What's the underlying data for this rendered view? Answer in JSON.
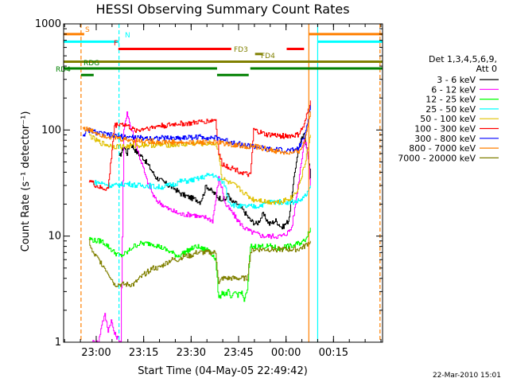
{
  "chart_data": {
    "type": "line",
    "title": "HESSI Observing Summary Count Rates",
    "xlabel": "Start Time (04-May-05 22:49:42)",
    "ylabel": "Count Rate (s⁻¹ detector⁻¹)",
    "yscale": "log",
    "ylim": [
      1,
      1000
    ],
    "xlim": [
      "22:49:42",
      "00:30:30"
    ],
    "x_unit": "minutes after 22:49:42",
    "x_range_minutes": [
      0,
      100.8
    ],
    "yticks": [
      {
        "value": 1,
        "label": "1"
      },
      {
        "value": 10,
        "label": "10"
      },
      {
        "value": 100,
        "label": "100"
      },
      {
        "value": 1000,
        "label": "1000"
      }
    ],
    "xticks": [
      {
        "minute": 10.3,
        "label": "23:00"
      },
      {
        "minute": 25.3,
        "label": "23:15"
      },
      {
        "minute": 40.3,
        "label": "23:30"
      },
      {
        "minute": 55.3,
        "label": "23:45"
      },
      {
        "minute": 70.3,
        "label": "00:00"
      },
      {
        "minute": 85.3,
        "label": "00:15"
      }
    ],
    "legend": {
      "placement": "right",
      "header": [
        "Det 1,3,4,5,6,9,",
        "Att 0"
      ],
      "entries": [
        {
          "label": "3 - 6 keV",
          "color": "#000000"
        },
        {
          "label": "6 - 12 keV",
          "color": "#ff00ff"
        },
        {
          "label": "12 - 25 keV",
          "color": "#00ff00"
        },
        {
          "label": "25 - 50 keV",
          "color": "#00ffff"
        },
        {
          "label": "50 - 100 keV",
          "color": "#e0c000"
        },
        {
          "label": "100 - 300 keV",
          "color": "#ff0000"
        },
        {
          "label": "300 - 800 keV",
          "color": "#0000ff"
        },
        {
          "label": "800 - 7000 keV",
          "color": "#ff8000"
        },
        {
          "label": "7000 - 20000 keV",
          "color": "#808000"
        }
      ]
    },
    "flag_bars": [
      {
        "label": "S",
        "color": "#ff8000",
        "y": 800,
        "segments": [
          [
            0,
            6.5
          ],
          [
            77.5,
            100.8
          ]
        ]
      },
      {
        "label": "N",
        "color": "#00ffff",
        "y": 680,
        "segments": [
          [
            0,
            17.5
          ],
          [
            80.3,
            100.8
          ]
        ]
      },
      {
        "label": "F",
        "color": "#ff0000",
        "y": 580,
        "segments": [
          [
            17.3,
            53.0
          ],
          [
            70.5,
            76.0
          ]
        ]
      },
      {
        "label": "FD3",
        "color": "#808000",
        "y": 520,
        "segments": [
          [
            60.5,
            63.0
          ]
        ]
      },
      {
        "label": "FD4",
        "color": "#808000",
        "y": 440,
        "segments": [
          [
            0,
            100.8
          ]
        ]
      },
      {
        "label": "RDG",
        "color": "#008000",
        "y": 380,
        "segments": [
          [
            0,
            48.5
          ],
          [
            59.0,
            100.8
          ]
        ]
      },
      {
        "label": "RD4",
        "color": "#008000",
        "y": 330,
        "segments": [
          [
            5.5,
            9.5
          ],
          [
            48.5,
            58.5
          ]
        ]
      }
    ],
    "vertical_lines": [
      {
        "minute": 5.5,
        "color": "#ff8000",
        "style": "dashed"
      },
      {
        "minute": 17.5,
        "color": "#00ffff",
        "style": "dashed"
      },
      {
        "minute": 77.5,
        "color": "#ff8000",
        "style": "solid"
      },
      {
        "minute": 80.3,
        "color": "#00ffff",
        "style": "solid"
      },
      {
        "minute": 100.0,
        "color": "#ff8000",
        "style": "dashed"
      }
    ],
    "series": [
      {
        "name": "3 - 6 keV",
        "color": "#000000",
        "x": [
          17.5,
          19,
          20,
          21,
          22,
          23,
          25,
          27,
          29,
          31,
          33,
          35,
          37,
          40,
          42,
          43,
          44,
          45,
          47,
          49,
          51,
          52,
          53,
          55,
          57,
          59,
          61,
          63,
          65,
          67,
          69,
          71,
          72,
          73,
          74,
          75,
          76,
          77,
          78
        ],
        "y": [
          55,
          70,
          60,
          75,
          68,
          62,
          55,
          45,
          36,
          33,
          30,
          28,
          25,
          23,
          22,
          21,
          24,
          30,
          26,
          23,
          22,
          25,
          21,
          20,
          17,
          14,
          13,
          16,
          13,
          14,
          12,
          14,
          22,
          40,
          65,
          80,
          90,
          65,
          35
        ]
      },
      {
        "name": "6 - 12 keV",
        "color": "#ff00ff",
        "x": [
          9,
          10,
          11,
          12,
          13,
          14,
          15,
          16,
          17,
          18,
          19,
          20,
          21,
          22,
          23,
          24,
          25,
          26,
          27,
          28,
          29,
          31,
          33,
          35,
          37,
          39,
          41,
          43,
          45,
          47,
          48,
          49,
          50,
          51,
          53,
          55,
          57,
          59,
          61,
          63,
          65,
          67,
          69,
          71,
          72,
          73,
          74,
          75,
          76,
          77,
          78
        ],
        "y": [
          1,
          1,
          1,
          1.5,
          1.8,
          1.3,
          1.6,
          1.2,
          1.1,
          1,
          100,
          150,
          110,
          90,
          70,
          55,
          45,
          35,
          30,
          25,
          22,
          20,
          18,
          17,
          16,
          16,
          16,
          15,
          15,
          14,
          22,
          35,
          28,
          20,
          17,
          14,
          12,
          11,
          10.5,
          10,
          10,
          10,
          10,
          11,
          12,
          18,
          30,
          50,
          80,
          65,
          30
        ]
      },
      {
        "name": "12 - 25 keV",
        "color": "#00ff00",
        "x": [
          8,
          10,
          12,
          14,
          16,
          18,
          20,
          22,
          24,
          26,
          28,
          30,
          32,
          34,
          36,
          38,
          40,
          42,
          44,
          46,
          48,
          49,
          50,
          51,
          52,
          53,
          54,
          55,
          56,
          57,
          58,
          59,
          60,
          62,
          64,
          66,
          68,
          70,
          72,
          74,
          76,
          78
        ],
        "y": [
          9.5,
          9,
          9,
          8,
          7,
          6.5,
          7,
          8,
          8.5,
          8.5,
          8.5,
          8,
          7.5,
          7,
          6.5,
          7,
          7.5,
          8,
          7.5,
          7.5,
          6,
          2.5,
          3,
          2.8,
          3,
          2.5,
          3,
          2.8,
          3,
          2.5,
          3,
          8,
          8,
          8,
          8,
          8,
          7.5,
          8,
          8,
          8.5,
          9,
          12
        ]
      },
      {
        "name": "25 - 50 keV",
        "color": "#00ffff",
        "x": [
          9,
          11,
          13,
          15,
          17,
          19,
          21,
          23,
          25,
          27,
          29,
          31,
          33,
          35,
          37,
          39,
          41,
          43,
          45,
          47,
          48,
          49,
          50,
          51,
          52,
          53,
          55,
          57,
          59,
          61,
          63,
          65,
          67,
          69,
          71,
          73,
          75,
          77,
          78
        ],
        "y": [
          32,
          32,
          31,
          30,
          30,
          31,
          31,
          30,
          30,
          30,
          29,
          29,
          30,
          31,
          33,
          33,
          34,
          35,
          37,
          38,
          36,
          34,
          33,
          30,
          22,
          20,
          19,
          19,
          19,
          19,
          20,
          21,
          21,
          21,
          21,
          21,
          22,
          25,
          30
        ]
      },
      {
        "name": "50 - 100 keV",
        "color": "#e0c000",
        "x": [
          8,
          10,
          12,
          14,
          16,
          18,
          20,
          22,
          24,
          26,
          28,
          30,
          32,
          34,
          36,
          38,
          40,
          42,
          44,
          46,
          48,
          49,
          50,
          52,
          54,
          56,
          58,
          59,
          60,
          62,
          64,
          66,
          68,
          70,
          72,
          74,
          76,
          78
        ],
        "y": [
          90,
          80,
          75,
          72,
          70,
          70,
          70,
          71,
          72,
          73,
          72,
          72,
          73,
          72,
          73,
          73,
          74,
          75,
          74,
          75,
          75,
          60,
          35,
          32,
          30,
          27,
          24,
          23,
          22,
          22,
          21,
          21,
          21,
          22,
          23,
          28,
          45,
          90
        ]
      },
      {
        "name": "100 - 300 keV",
        "color": "#ff0000",
        "x": [
          8,
          10,
          12,
          14,
          16,
          18,
          20,
          22,
          24,
          26,
          28,
          30,
          32,
          34,
          36,
          38,
          40,
          42,
          44,
          46,
          48,
          49,
          50,
          52,
          54,
          56,
          58,
          59,
          60,
          62,
          64,
          66,
          68,
          70,
          72,
          74,
          76,
          78
        ],
        "y": [
          34,
          30,
          28,
          28,
          110,
          115,
          110,
          100,
          100,
          105,
          105,
          110,
          110,
          112,
          115,
          115,
          115,
          118,
          120,
          122,
          125,
          60,
          48,
          45,
          43,
          40,
          38,
          37,
          100,
          95,
          90,
          90,
          88,
          88,
          88,
          90,
          110,
          190
        ]
      },
      {
        "name": "300 - 800 keV",
        "color": "#0000ff",
        "x": [
          6,
          8,
          10,
          12,
          14,
          16,
          18,
          20,
          22,
          24,
          26,
          28,
          30,
          32,
          34,
          36,
          38,
          40,
          42,
          44,
          46,
          48,
          50,
          52,
          54,
          56,
          58,
          60,
          62,
          64,
          66,
          68,
          70,
          72,
          74,
          76,
          78
        ],
        "y": [
          90,
          100,
          95,
          92,
          90,
          88,
          87,
          86,
          85,
          84,
          84,
          84,
          84,
          84,
          84,
          84,
          85,
          85,
          86,
          86,
          85,
          84,
          82,
          78,
          76,
          73,
          71,
          70,
          68,
          66,
          65,
          65,
          64,
          64,
          66,
          85,
          170
        ]
      },
      {
        "name": "800 - 7000 keV",
        "color": "#ff8000",
        "x": [
          6,
          8,
          10,
          12,
          14,
          16,
          18,
          20,
          22,
          24,
          26,
          28,
          30,
          32,
          34,
          36,
          38,
          40,
          42,
          44,
          46,
          48,
          50,
          52,
          54,
          56,
          58,
          60,
          62,
          64,
          66,
          68,
          70,
          72,
          74,
          76,
          78
        ],
        "y": [
          105,
          100,
          95,
          90,
          87,
          85,
          82,
          81,
          80,
          79,
          79,
          78,
          77,
          77,
          77,
          76,
          76,
          76,
          76,
          77,
          77,
          76,
          75,
          74,
          72,
          71,
          70,
          70,
          68,
          66,
          64,
          62,
          61,
          60,
          62,
          75,
          150
        ]
      },
      {
        "name": "7000 - 20000 keV",
        "color": "#808000",
        "x": [
          8,
          9,
          10,
          11,
          12,
          13,
          14,
          15,
          16,
          18,
          20,
          22,
          24,
          26,
          28,
          30,
          32,
          34,
          36,
          38,
          40,
          42,
          44,
          46,
          48,
          49,
          50,
          52,
          54,
          56,
          58,
          59,
          60,
          62,
          64,
          66,
          68,
          70,
          72,
          74,
          76,
          78
        ],
        "y": [
          9,
          7,
          6.5,
          6,
          5.5,
          5,
          4.5,
          4,
          3.5,
          3.5,
          3.5,
          3.5,
          4,
          4.5,
          5,
          5,
          5.5,
          6,
          6,
          6.5,
          6.5,
          7,
          7,
          7,
          7,
          3.5,
          4,
          4,
          4,
          4,
          4,
          7,
          7.5,
          7.5,
          7.5,
          7.5,
          7.5,
          7.5,
          7.5,
          7.5,
          8,
          9
        ]
      }
    ]
  },
  "footer": {
    "date_stamp": "22-Mar-2010 15:01"
  }
}
